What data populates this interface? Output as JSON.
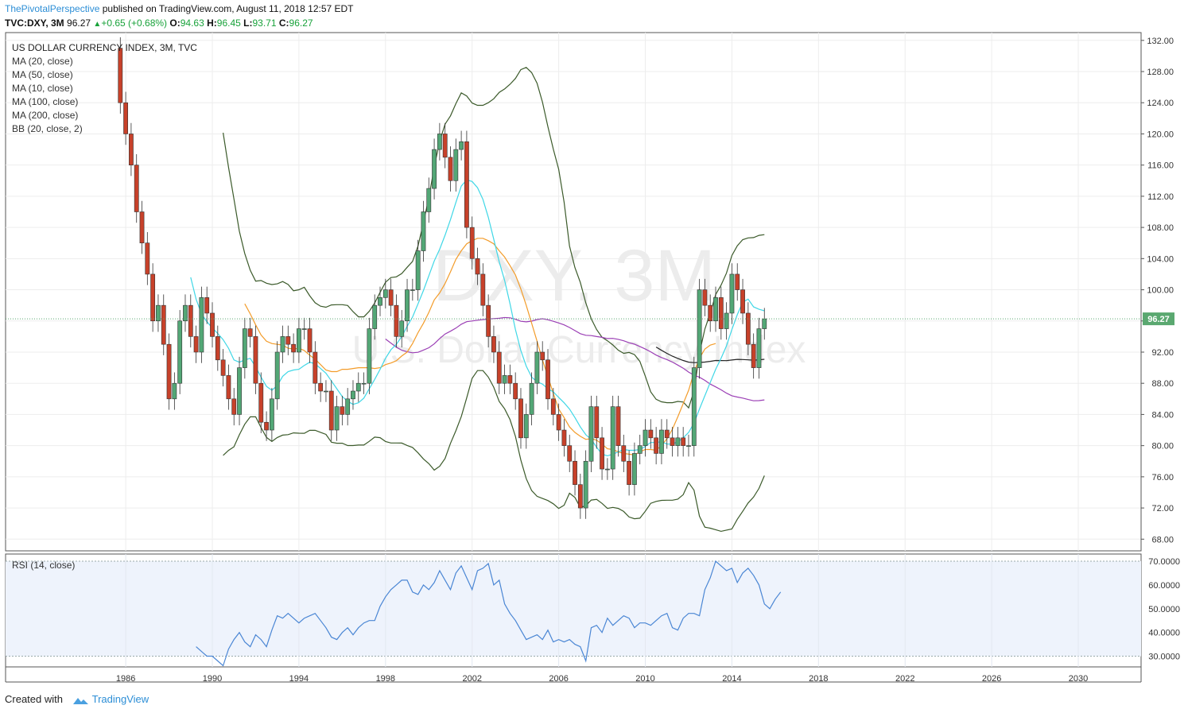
{
  "header": {
    "publisher": "ThePivotalPerspective",
    "published_text": "published on TradingView.com, August 11, 2018 12:57 EDT"
  },
  "ohlc": {
    "symbol": "TVC:DXY, 3M",
    "last": "96.27",
    "change": "+0.65 (+0.68%)",
    "o_label": "O:",
    "o": "94.63",
    "h_label": "H:",
    "h": "96.45",
    "l_label": "L:",
    "l": "93.71",
    "c_label": "C:",
    "c": "96.27"
  },
  "legend": {
    "title": "US DOLLAR CURRENCY INDEX, 3M, TVC",
    "items": [
      "MA (20, close)",
      "MA (50, close)",
      "MA (10, close)",
      "MA (100, close)",
      "MA (200, close)",
      "BB (20, close, 2)"
    ]
  },
  "watermark": {
    "symbol": "DXY, 3M",
    "name": "U.S. Dollar Currency Index"
  },
  "footer": {
    "created_with": "Created with",
    "brand": "TradingView"
  },
  "colors": {
    "up": "#53a776",
    "down": "#c7412a",
    "ma10": "#3fd7e6",
    "ma20": "#f39c2a",
    "ma50": "#9b3fb5",
    "ma100": "#222222",
    "bb": "#3b5a2a",
    "rsi": "#4a86d4",
    "rsi_band": "#eef3fc",
    "price_tag": "#5aa870"
  },
  "chart_data": [
    {
      "type": "candlestick",
      "title": "US DOLLAR CURRENCY INDEX, 3M, TVC",
      "y_ticks": [
        "132.00",
        "128.00",
        "124.00",
        "120.00",
        "116.00",
        "112.00",
        "108.00",
        "104.00",
        "100.00",
        "96.00",
        "92.00",
        "88.00",
        "84.00",
        "80.00",
        "76.00",
        "72.00",
        "68.00"
      ],
      "x_ticks": [
        "1986",
        "1990",
        "1994",
        "1998",
        "2002",
        "2006",
        "2010",
        "2014",
        "2018",
        "2022",
        "2026",
        "2030"
      ],
      "ylim": [
        66.5,
        133
      ],
      "xlim": [
        1980.45,
        2032.9
      ],
      "last_price_label": "96.27",
      "last_price": 96.27,
      "candles_close": [
        124,
        120,
        116,
        110,
        106,
        102,
        96,
        98,
        93,
        86,
        88,
        96,
        98,
        94,
        92,
        99,
        97,
        94,
        91,
        89,
        86,
        84,
        90,
        95,
        94,
        88,
        83,
        82,
        86,
        92,
        94,
        93,
        92,
        95,
        95,
        92,
        88,
        87,
        87,
        82,
        85,
        84,
        86,
        87,
        88,
        88,
        95,
        98,
        99,
        100,
        98,
        94,
        96,
        100,
        100,
        105,
        110,
        113,
        118,
        120,
        117,
        114,
        118,
        119,
        108,
        104,
        102,
        98,
        94,
        92,
        88,
        89,
        88,
        86,
        81,
        84,
        88,
        92,
        91,
        86,
        84,
        82,
        80,
        78,
        75,
        72,
        78,
        85,
        81,
        77,
        77,
        85,
        80,
        78,
        75,
        79,
        80,
        82,
        81,
        79,
        82,
        81,
        80,
        81,
        80,
        80,
        90,
        100,
        98,
        96,
        99,
        95,
        97,
        102,
        100,
        97,
        93,
        90,
        95,
        96.27
      ],
      "ma10": [
        null,
        null,
        null,
        null,
        null,
        null,
        null,
        null,
        null,
        null,
        null,
        null,
        null,
        101.6,
        98.8,
        96.9,
        95.9,
        95.1,
        94.4,
        93.6,
        92.5,
        91.0,
        90.7,
        91.0,
        91.2,
        90.1,
        88.8,
        87.6,
        87.1,
        87.7,
        88.9,
        89.5,
        89.7,
        89.8,
        90.3,
        90.7,
        90.5,
        89.9,
        89.3,
        88.3,
        87.3,
        86.3,
        85.7,
        85.3,
        85.5,
        86.1,
        87.3,
        88.5,
        89.8,
        91.2,
        92.3,
        93.0,
        94.0,
        95.3,
        96.5,
        98.2,
        99.9,
        101.8,
        103.7,
        105.2,
        107.0,
        109.0,
        111.2,
        113.3,
        114.1,
        113.9,
        113.1,
        111.6,
        109.3,
        106.5,
        103.6,
        101.2,
        98.2,
        94.9,
        92.2,
        90.2,
        88.8,
        88.2,
        87.9,
        87.3,
        86.9,
        86.2,
        85.5,
        84.7,
        83.6,
        82.4,
        81.4,
        80.8,
        79.8,
        78.9,
        78.7,
        78.9,
        79.2,
        79.5,
        79.4,
        79.4,
        79.5,
        79.9,
        80.4,
        80.4,
        80.5,
        80.2,
        80.2,
        80.5,
        81.0,
        81.7,
        82.9,
        84.7,
        86.4,
        88.1,
        89.8,
        91.2,
        92.8,
        94.9,
        96.8,
        98.4,
        98.8,
        97.8,
        97.5,
        97.3
      ],
      "ma20": [
        null,
        null,
        null,
        null,
        null,
        null,
        null,
        null,
        null,
        null,
        null,
        null,
        null,
        null,
        null,
        null,
        null,
        null,
        null,
        null,
        null,
        null,
        null,
        98.2,
        96.9,
        95.5,
        94.2,
        93.4,
        93.1,
        93.0,
        92.9,
        92.5,
        92.4,
        92.5,
        92.2,
        91.6,
        91.1,
        90.4,
        89.7,
        89.5,
        89.5,
        89.8,
        89.8,
        89.9,
        90.0,
        90.0,
        90.0,
        89.9,
        90.0,
        90.4,
        90.6,
        90.9,
        91.5,
        92.0,
        93.1,
        94.5,
        95.7,
        97.1,
        98.7,
        99.6,
        100.8,
        102.3,
        103.9,
        105.0,
        105.9,
        106.3,
        106.6,
        106.6,
        106.3,
        105.9,
        105.0,
        104.2,
        103.1,
        101.9,
        100.1,
        98.0,
        95.7,
        93.4,
        91.0,
        88.9,
        86.7,
        84.7,
        83.6,
        82.4,
        81.7,
        81.2,
        80.8,
        80.9,
        80.7,
        80.2,
        79.6,
        79.5,
        79.2,
        79.0,
        78.9,
        78.8,
        79.2,
        79.5,
        79.5,
        79.4,
        80.0,
        80.9,
        82.1,
        83.7,
        85.4,
        87.1,
        89.4,
        91.2,
        92.4,
        92.9,
        93.1
      ]
    },
    {
      "type": "line",
      "title": "RSI (14, close)",
      "y_ticks": [
        "70.0000",
        "60.0000",
        "50.0000",
        "40.0000",
        "30.0000"
      ],
      "ylim": [
        25.5,
        73
      ],
      "band": [
        30,
        70
      ],
      "values": [
        null,
        null,
        null,
        null,
        null,
        null,
        null,
        null,
        null,
        null,
        null,
        null,
        null,
        null,
        34,
        32,
        30,
        30,
        28,
        26,
        33,
        37,
        40,
        36,
        34,
        39,
        37,
        34,
        41,
        47,
        46,
        48,
        46,
        44,
        46,
        47,
        48,
        45,
        42,
        38,
        37,
        40,
        42,
        39,
        42,
        44,
        45,
        45,
        51,
        55,
        58,
        60,
        62,
        62,
        57,
        56,
        60,
        58,
        61,
        66,
        62,
        58,
        65,
        68,
        63,
        58,
        66,
        67,
        69,
        60,
        62,
        52,
        48,
        45,
        41,
        37,
        38,
        39,
        37,
        41,
        36,
        37,
        36,
        37,
        35,
        34,
        28,
        42,
        43,
        40,
        46,
        43,
        45,
        47,
        46,
        42,
        44,
        44,
        43,
        45,
        47,
        48,
        42,
        41,
        46,
        48,
        48,
        47,
        58,
        63,
        70,
        68,
        66,
        67,
        61,
        65,
        67,
        64,
        60,
        52,
        50,
        54,
        57
      ]
    }
  ]
}
